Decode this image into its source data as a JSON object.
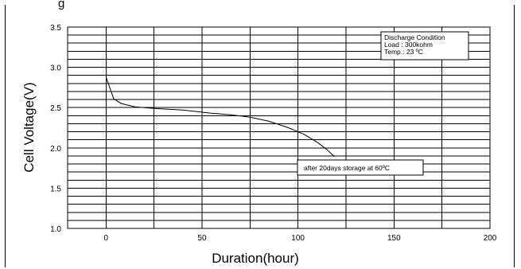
{
  "page": {
    "top_caption": "g"
  },
  "chart_data": {
    "type": "line",
    "title": "",
    "xlabel": "Duration(hour)",
    "ylabel": "Cell Voltage(V)",
    "xlim": [
      -20,
      200
    ],
    "ylim": [
      1.0,
      3.5
    ],
    "x_ticks": [
      0,
      50,
      100,
      150,
      200
    ],
    "x_tick_labels": [
      "0",
      "50",
      "100",
      "150",
      "200"
    ],
    "y_ticks": [
      1.0,
      1.5,
      2.0,
      2.5,
      3.0,
      3.5
    ],
    "y_tick_labels": [
      "1.0",
      "1.5",
      "2.0",
      "2.5",
      "3.0",
      "3.5"
    ],
    "minor_grid_step_y": 0.1,
    "grid": true,
    "series": [
      {
        "x": [
          0,
          4,
          8,
          15,
          25,
          40,
          55,
          65,
          75,
          85,
          95,
          103,
          110,
          115,
          119
        ],
        "y": [
          2.88,
          2.61,
          2.55,
          2.51,
          2.49,
          2.47,
          2.43,
          2.41,
          2.38,
          2.33,
          2.25,
          2.17,
          2.07,
          1.98,
          1.89
        ]
      }
    ],
    "annotations": [
      {
        "lines": [
          "Discharge Condition",
          "Load : 300kohm",
          "Temp.: 23 ºC"
        ],
        "position": "top-right"
      },
      {
        "lines": [
          "after 20days storage at 60ºC"
        ],
        "position": "curve-end"
      }
    ]
  }
}
